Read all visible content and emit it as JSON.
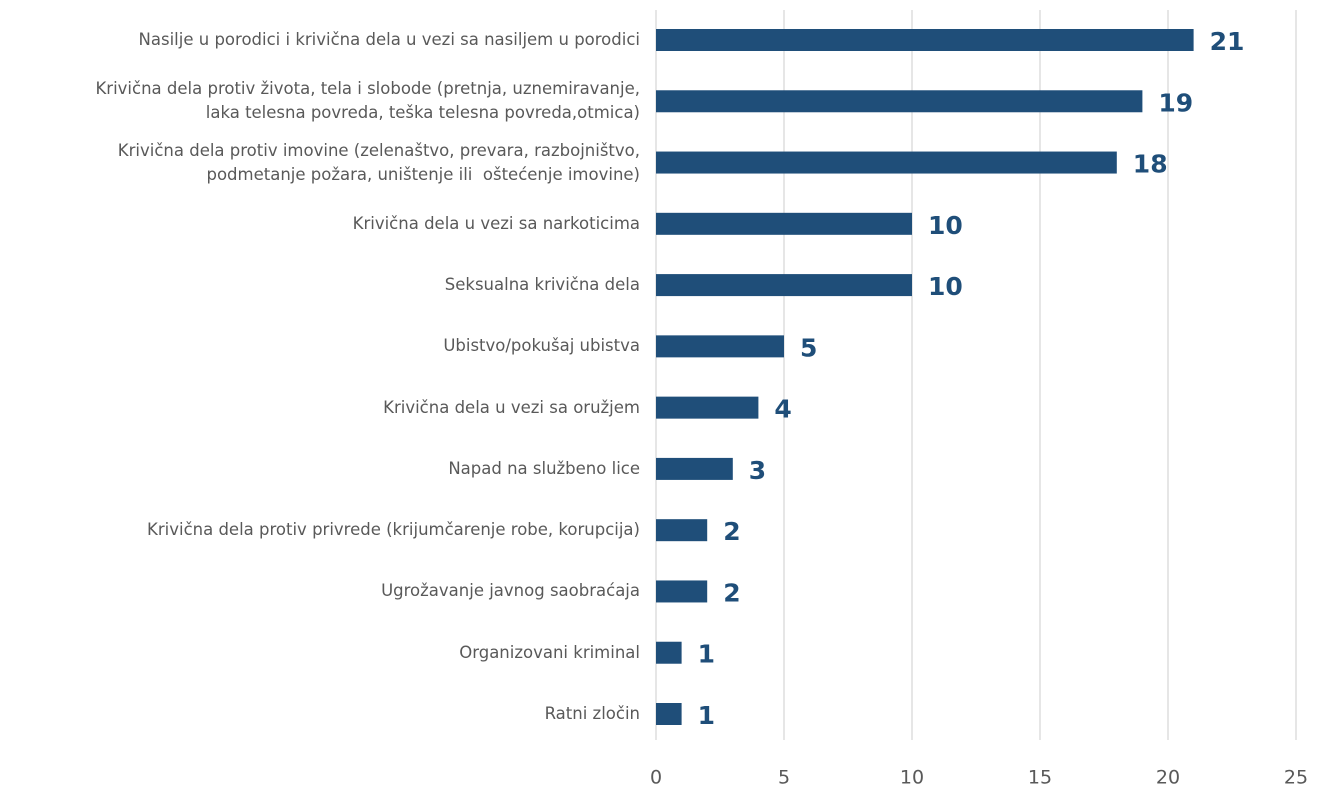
{
  "chart_data": {
    "type": "bar",
    "orientation": "horizontal",
    "categories": [
      "Nasilje u porodici i krivična dela u vezi sa nasiljem u porodici",
      "Krivična dela protiv života, tela i slobode (pretnja, uznemiravanje,\nlaka telesna povreda, teška telesna povreda,otmica)",
      "Krivična dela protiv imovine (zelenaštvo, prevara, razbojništvo,\npodmetanje požara, uništenje ili  oštećenje imovine)",
      "Krivična dela u vezi sa narkoticima",
      "Seksualna krivična dela",
      "Ubistvo/pokušaj ubistva",
      "Krivična dela u vezi sa oružjem",
      "Napad na službeno lice",
      "Krivična dela protiv privrede (krijumčarenje robe, korupcija)",
      "Ugrožavanje javnog saobraćaja",
      "Organizovani kriminal",
      "Ratni zločin"
    ],
    "values": [
      21,
      19,
      18,
      10,
      10,
      5,
      4,
      3,
      2,
      2,
      1,
      1
    ],
    "color": "#1f4e79",
    "xlim": [
      0,
      25
    ],
    "xticks": [
      0,
      5,
      10,
      15,
      20,
      25
    ],
    "grid": true
  }
}
